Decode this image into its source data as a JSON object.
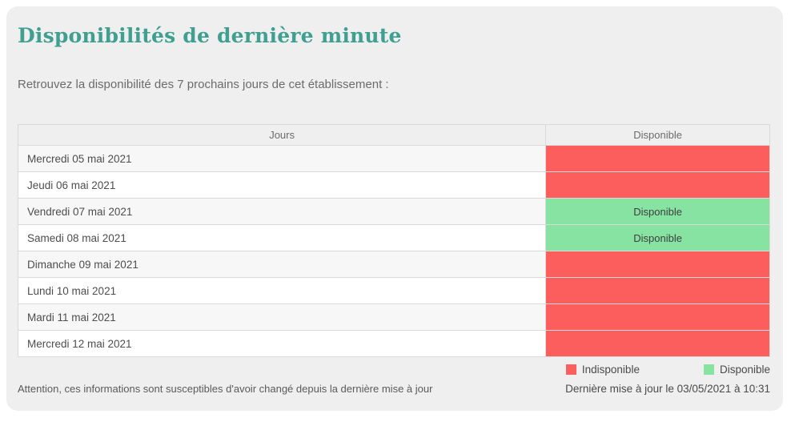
{
  "card": {
    "title": "Disponibilités de dernière minute",
    "subtitle": "Retrouvez la disponibilité des 7 prochains jours de cet établissement :"
  },
  "table": {
    "columns": {
      "days": "Jours",
      "available": "Disponible"
    },
    "rows": [
      {
        "day": "Mercredi 05 mai 2021",
        "status": "unavailable",
        "label": ""
      },
      {
        "day": "Jeudi 06 mai 2021",
        "status": "unavailable",
        "label": ""
      },
      {
        "day": "Vendredi 07 mai 2021",
        "status": "available",
        "label": "Disponible"
      },
      {
        "day": "Samedi 08 mai 2021",
        "status": "available",
        "label": "Disponible"
      },
      {
        "day": "Dimanche 09 mai 2021",
        "status": "unavailable",
        "label": ""
      },
      {
        "day": "Lundi 10 mai 2021",
        "status": "unavailable",
        "label": ""
      },
      {
        "day": "Mardi 11 mai 2021",
        "status": "unavailable",
        "label": ""
      },
      {
        "day": "Mercredi 12 mai 2021",
        "status": "unavailable",
        "label": ""
      }
    ]
  },
  "legend": {
    "unavailable_label": "Indisponible",
    "available_label": "Disponible"
  },
  "footer": {
    "warning": "Attention, ces informations sont susceptibles d'avoir changé depuis la dernière mise à jour",
    "last_update": "Dernière mise à jour le 03/05/2021 à 10:31"
  },
  "colors": {
    "title_teal": "#3f9f90",
    "unavailable_red": "#fc5d5d",
    "available_green": "#86e3a2",
    "card_background": "#efefef"
  }
}
